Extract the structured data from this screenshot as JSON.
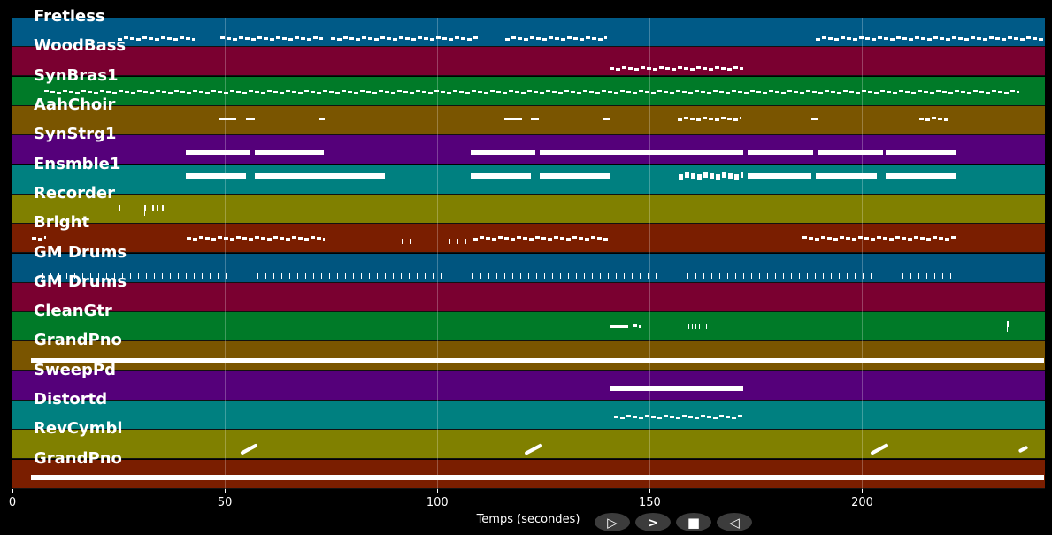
{
  "x_axis": {
    "label": "Temps (secondes)",
    "min": 0,
    "max": 243,
    "ticks": [
      "0",
      "50",
      "100",
      "150",
      "200"
    ],
    "tick_values": [
      0,
      50,
      100,
      150,
      200
    ]
  },
  "controls": [
    {
      "name": "play-button",
      "icon": "play-outline-icon",
      "glyph": "▷"
    },
    {
      "name": "forward-button",
      "icon": "chevron-right-icon",
      "glyph": ">"
    },
    {
      "name": "stop-button",
      "icon": "stop-icon",
      "glyph": "■"
    },
    {
      "name": "rewind-button",
      "icon": "back-outline-icon",
      "glyph": "◁"
    }
  ],
  "tracks": [
    {
      "name": "Fretless",
      "color": "#005a87",
      "notes": [
        [
          24.8,
          42.9,
          "dotted"
        ],
        [
          49,
          73,
          "dotted"
        ],
        [
          75,
          110,
          "dotted"
        ],
        [
          116,
          140,
          "dotted"
        ],
        [
          189,
          242.7,
          "dotted"
        ]
      ]
    },
    {
      "name": "WoodBass",
      "color": "#7a0030",
      "notes": [
        [
          140.5,
          172,
          "dotted"
        ]
      ]
    },
    {
      "name": "SynBras1",
      "color": "#007a28",
      "notes": [
        [
          7.5,
          237,
          "dotted"
        ]
      ]
    },
    {
      "name": "AahChoir",
      "color": "#7a5500",
      "notes": [
        [
          48.5,
          52.6,
          "solid"
        ],
        [
          55,
          57,
          "solid"
        ],
        [
          72,
          73.5,
          "solid"
        ],
        [
          115.7,
          120,
          "solid"
        ],
        [
          122,
          124,
          "solid"
        ],
        [
          139,
          140.7,
          "solid"
        ],
        [
          156.5,
          171.5,
          "dotted"
        ],
        [
          188,
          189.5,
          "solid"
        ],
        [
          213.5,
          220.4,
          "dotted"
        ]
      ]
    },
    {
      "name": "SynStrg1",
      "color": "#55007a",
      "notes": [
        [
          40.8,
          56,
          "solid"
        ],
        [
          57,
          73.3,
          "solid"
        ],
        [
          107.8,
          123,
          "solid"
        ],
        [
          124,
          140,
          "solid"
        ],
        [
          140,
          172,
          "solid"
        ],
        [
          173,
          188.4,
          "solid"
        ],
        [
          189.6,
          204.8,
          "solid"
        ],
        [
          205.6,
          221.9,
          "solid"
        ]
      ]
    },
    {
      "name": "Ensmble1",
      "color": "#008080",
      "notes": [
        [
          40.8,
          55,
          "solid"
        ],
        [
          57,
          87.6,
          "solid"
        ],
        [
          107.8,
          122,
          "solid"
        ],
        [
          124,
          140.5,
          "solid"
        ],
        [
          156.7,
          172,
          "dotted"
        ],
        [
          173,
          188,
          "solid"
        ],
        [
          189,
          203.5,
          "solid"
        ],
        [
          205.6,
          222,
          "solid"
        ]
      ]
    },
    {
      "name": "Recorder",
      "color": "#808000",
      "notes": [
        [
          25,
          25.3,
          "ticks"
        ],
        [
          31,
          31.3,
          "ticks"
        ],
        [
          32.9,
          33.2,
          "ticks"
        ],
        [
          34,
          34.3,
          "ticks"
        ],
        [
          35.2,
          35.5,
          "ticks"
        ]
      ]
    },
    {
      "name": "Bright",
      "color": "#7a1e00",
      "notes": [
        [
          4.6,
          8,
          "dotted"
        ],
        [
          41,
          73.5,
          "dotted"
        ],
        [
          91.6,
          107.8,
          "ticks"
        ],
        [
          108.4,
          140.7,
          "dotted"
        ],
        [
          186,
          222,
          "dotted"
        ]
      ]
    },
    {
      "name": "GM Drums",
      "color": "#00557f",
      "notes": [
        [
          3.3,
          222,
          "ticks"
        ]
      ]
    },
    {
      "name": "GM Drums",
      "color": "#7a0030",
      "notes": []
    },
    {
      "name": "CleanGtr",
      "color": "#007a28",
      "notes": [
        [
          140.5,
          145,
          "solid"
        ],
        [
          146,
          148,
          "dotted"
        ],
        [
          159,
          163.6,
          "ticks"
        ],
        [
          234,
          234.4,
          "ticks"
        ]
      ]
    },
    {
      "name": "GrandPno",
      "color": "#7a5500",
      "notes": [
        [
          4.4,
          242.7,
          "solid"
        ]
      ]
    },
    {
      "name": "SweepPd",
      "color": "#55007a",
      "notes": [
        [
          140.5,
          172,
          "solid"
        ]
      ]
    },
    {
      "name": "Distortd",
      "color": "#008080",
      "notes": [
        [
          141.5,
          172,
          "dotted"
        ]
      ]
    },
    {
      "name": "RevCymbl",
      "color": "#808000",
      "notes": [
        [
          53.5,
          57.4,
          "diagonal"
        ],
        [
          120.3,
          124.5,
          "diagonal"
        ],
        [
          201.7,
          205.8,
          "diagonal"
        ],
        [
          236.8,
          238.7,
          "diagonal"
        ]
      ]
    },
    {
      "name": "GrandPno",
      "color": "#7a1e00",
      "notes": [
        [
          4.4,
          242.7,
          "solid"
        ]
      ]
    }
  ]
}
